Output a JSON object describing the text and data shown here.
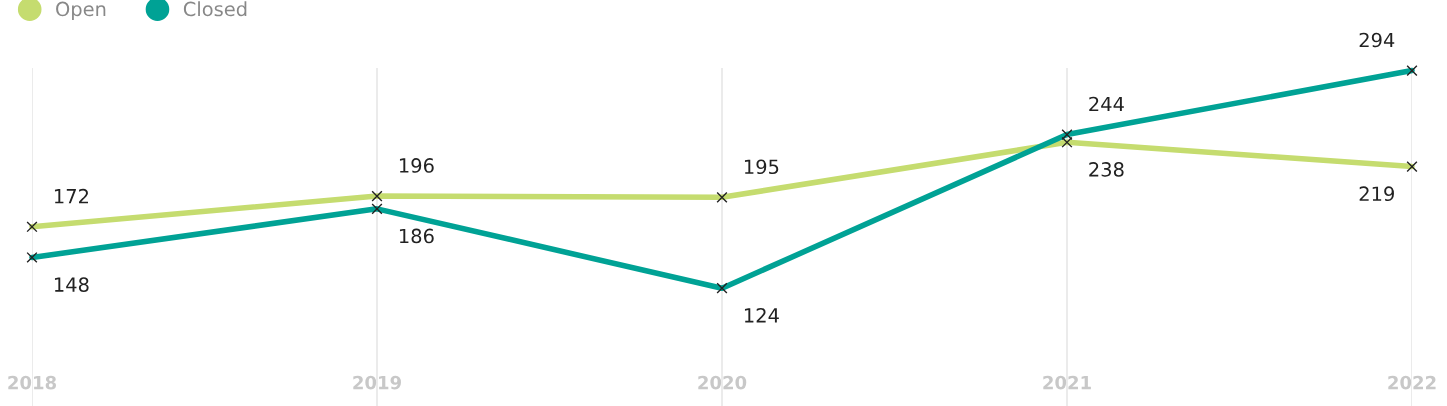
{
  "chart_data": {
    "type": "line",
    "categories": [
      "2018",
      "2019",
      "2020",
      "2021",
      "2022"
    ],
    "series": [
      {
        "name": "Open",
        "color": "#c5dc6f",
        "values": [
          172,
          196,
          195,
          238,
          219
        ]
      },
      {
        "name": "Closed",
        "color": "#00a295",
        "values": [
          148,
          186,
          124,
          244,
          294
        ]
      }
    ],
    "data_labels": true,
    "marker": "cross",
    "grid": "x",
    "legend": "top left",
    "relative": false,
    "tick_labels": "x",
    "ylim": [
      32,
      296
    ]
  }
}
